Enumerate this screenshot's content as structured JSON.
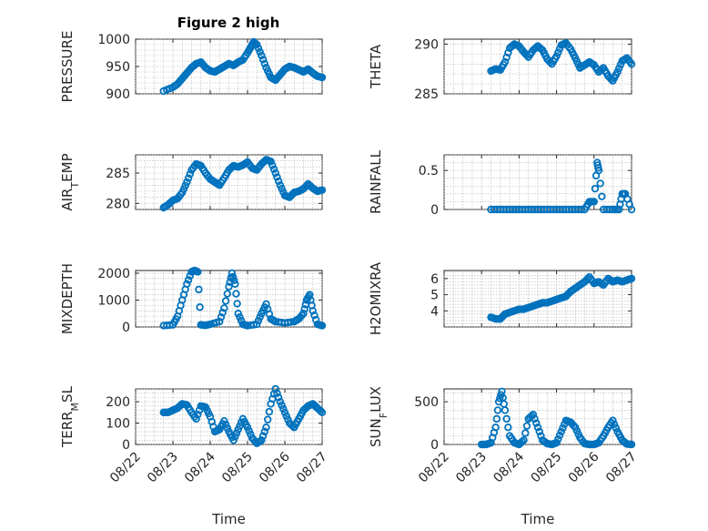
{
  "figure": {
    "title": "Figure 2 high",
    "xlabel": "Time",
    "date_ticks": [
      "08/22",
      "08/23",
      "08/24",
      "08/25",
      "08/26",
      "08/27"
    ]
  },
  "colors": {
    "marker": "#0072BD",
    "axis": "#262626",
    "grid": "#b5b5b5"
  },
  "chart_data": [
    {
      "type": "scatter",
      "ylabel": "PRESSURE",
      "ylim": [
        900,
        1000
      ],
      "yticks": [
        900,
        950,
        1000
      ],
      "grid": "on",
      "x": [
        "08/22 18:00",
        "08/23 00:00",
        "08/23 03:00",
        "08/23 06:00",
        "08/23 09:00",
        "08/23 12:00",
        "08/23 15:00",
        "08/23 18:00",
        "08/23 21:00",
        "08/24 00:00",
        "08/24 03:00",
        "08/24 06:00",
        "08/24 09:00",
        "08/24 12:00",
        "08/24 15:00",
        "08/24 18:00",
        "08/24 21:00",
        "08/25 00:00",
        "08/25 02:00",
        "08/25 04:00",
        "08/25 06:00",
        "08/25 09:00",
        "08/25 12:00",
        "08/25 15:00",
        "08/25 18:00",
        "08/25 21:00",
        "08/26 00:00",
        "08/26 03:00",
        "08/26 06:00",
        "08/26 09:00",
        "08/26 12:00",
        "08/26 15:00",
        "08/26 18:00",
        "08/26 21:00",
        "08/27 00:00"
      ],
      "y": [
        905,
        912,
        918,
        928,
        938,
        948,
        955,
        958,
        948,
        942,
        940,
        945,
        950,
        955,
        952,
        958,
        962,
        975,
        985,
        995,
        990,
        970,
        948,
        930,
        925,
        935,
        945,
        950,
        948,
        944,
        940,
        945,
        938,
        932,
        930
      ]
    },
    {
      "type": "scatter",
      "ylabel": "THETA",
      "ylim": [
        285,
        290.5
      ],
      "yticks": [
        285,
        290
      ],
      "grid": "on",
      "x": [
        "08/23 06:00",
        "08/23 09:00",
        "08/23 12:00",
        "08/23 15:00",
        "08/23 18:00",
        "08/23 21:00",
        "08/24 00:00",
        "08/24 03:00",
        "08/24 06:00",
        "08/24 09:00",
        "08/24 12:00",
        "08/24 15:00",
        "08/24 18:00",
        "08/24 21:00",
        "08/25 00:00",
        "08/25 03:00",
        "08/25 06:00",
        "08/25 09:00",
        "08/25 12:00",
        "08/25 15:00",
        "08/25 18:00",
        "08/25 21:00",
        "08/26 00:00",
        "08/26 03:00",
        "08/26 06:00",
        "08/26 09:00",
        "08/26 12:00",
        "08/26 15:00",
        "08/26 18:00",
        "08/26 21:00",
        "08/27 00:00"
      ],
      "y": [
        287.3,
        287.5,
        287.4,
        288.2,
        289.6,
        290.0,
        289.8,
        289.2,
        288.7,
        289.4,
        289.8,
        289.4,
        288.5,
        288.0,
        288.8,
        289.9,
        290.1,
        289.5,
        288.6,
        287.6,
        287.9,
        288.2,
        287.9,
        287.2,
        287.6,
        286.8,
        286.3,
        287.2,
        288.3,
        288.6,
        288.0
      ]
    },
    {
      "type": "scatter",
      "ylabel": "AIR_TEMP",
      "ylim": [
        279,
        288
      ],
      "yticks": [
        280,
        285
      ],
      "grid": "on",
      "x": [
        "08/22 18:00",
        "08/22 21:00",
        "08/23 00:00",
        "08/23 03:00",
        "08/23 06:00",
        "08/23 09:00",
        "08/23 12:00",
        "08/23 15:00",
        "08/23 18:00",
        "08/23 21:00",
        "08/24 00:00",
        "08/24 03:00",
        "08/24 06:00",
        "08/24 09:00",
        "08/24 12:00",
        "08/24 15:00",
        "08/24 18:00",
        "08/24 21:00",
        "08/25 00:00",
        "08/25 03:00",
        "08/25 06:00",
        "08/25 09:00",
        "08/25 12:00",
        "08/25 15:00",
        "08/25 18:00",
        "08/25 21:00",
        "08/26 00:00",
        "08/26 03:00",
        "08/26 06:00",
        "08/26 09:00",
        "08/26 12:00",
        "08/26 15:00",
        "08/26 18:00",
        "08/26 21:00",
        "08/27 00:00"
      ],
      "y": [
        279.3,
        279.8,
        280.5,
        280.8,
        281.8,
        283.5,
        285.5,
        286.5,
        286.2,
        285.0,
        284.0,
        283.5,
        283.0,
        284.2,
        285.5,
        286.2,
        286.0,
        286.3,
        286.8,
        285.8,
        285.5,
        286.5,
        287.2,
        286.9,
        285.0,
        283.0,
        281.3,
        281.0,
        281.8,
        282.0,
        282.4,
        283.2,
        282.5,
        282.0,
        282.2
      ]
    },
    {
      "type": "scatter",
      "ylabel": "RAINFALL",
      "ylim": [
        0,
        0.7
      ],
      "yticks": [
        0,
        0.5
      ],
      "grid": "on",
      "x": [
        "08/23 06:00",
        "08/23 12:00",
        "08/23 18:00",
        "08/24 00:00",
        "08/24 06:00",
        "08/24 12:00",
        "08/24 18:00",
        "08/25 00:00",
        "08/25 06:00",
        "08/25 12:00",
        "08/25 18:00",
        "08/25 21:00",
        "08/26 00:00",
        "08/26 02:00",
        "08/26 03:00",
        "08/26 06:00",
        "08/26 12:00",
        "08/26 16:00",
        "08/26 18:00",
        "08/26 20:00",
        "08/27 00:00"
      ],
      "y": [
        0,
        0,
        0,
        0,
        0,
        0,
        0,
        0,
        0,
        0,
        0,
        0.1,
        0.1,
        0.6,
        0.5,
        0,
        0,
        0,
        0.2,
        0.2,
        0
      ]
    },
    {
      "type": "scatter",
      "ylabel": "MIXDEPTH",
      "ylim": [
        0,
        2100
      ],
      "yticks": [
        0,
        1000,
        2000
      ],
      "grid": "on",
      "x": [
        "08/22 18:00",
        "08/23 00:00",
        "08/23 03:00",
        "08/23 06:00",
        "08/23 09:00",
        "08/23 12:00",
        "08/23 14:00",
        "08/23 16:00",
        "08/23 18:00",
        "08/23 21:00",
        "08/24 00:00",
        "08/24 06:00",
        "08/24 09:00",
        "08/24 12:00",
        "08/24 14:00",
        "08/24 16:00",
        "08/24 18:00",
        "08/24 21:00",
        "08/25 00:00",
        "08/25 06:00",
        "08/25 09:00",
        "08/25 12:00",
        "08/25 15:00",
        "08/25 18:00",
        "08/26 00:00",
        "08/26 06:00",
        "08/26 09:00",
        "08/26 12:00",
        "08/26 14:00",
        "08/26 16:00",
        "08/26 18:00",
        "08/26 21:00",
        "08/27 00:00"
      ],
      "y": [
        50,
        80,
        400,
        1000,
        1600,
        2050,
        2100,
        2050,
        80,
        60,
        100,
        200,
        700,
        1500,
        2000,
        1600,
        500,
        100,
        50,
        100,
        500,
        850,
        300,
        200,
        150,
        200,
        300,
        500,
        1000,
        1200,
        600,
        100,
        50
      ]
    },
    {
      "type": "scatter",
      "ylabel": "H2OMIXRA",
      "ylim": [
        3,
        6.5
      ],
      "yticks": [
        4,
        5,
        6
      ],
      "grid": "on",
      "x": [
        "08/23 06:00",
        "08/23 09:00",
        "08/23 12:00",
        "08/23 15:00",
        "08/23 18:00",
        "08/23 21:00",
        "08/24 00:00",
        "08/24 03:00",
        "08/24 06:00",
        "08/24 09:00",
        "08/24 12:00",
        "08/24 15:00",
        "08/24 18:00",
        "08/24 21:00",
        "08/25 00:00",
        "08/25 03:00",
        "08/25 06:00",
        "08/25 09:00",
        "08/25 12:00",
        "08/25 15:00",
        "08/25 18:00",
        "08/25 21:00",
        "08/26 00:00",
        "08/26 03:00",
        "08/26 06:00",
        "08/26 09:00",
        "08/26 12:00",
        "08/26 15:00",
        "08/26 18:00",
        "08/26 21:00",
        "08/27 00:00"
      ],
      "y": [
        3.6,
        3.5,
        3.5,
        3.8,
        3.9,
        4.0,
        4.1,
        4.1,
        4.2,
        4.3,
        4.4,
        4.5,
        4.5,
        4.6,
        4.7,
        4.8,
        4.9,
        5.2,
        5.4,
        5.6,
        5.8,
        6.1,
        5.7,
        5.8,
        5.6,
        6.0,
        5.8,
        5.9,
        5.8,
        5.9,
        6.0
      ]
    },
    {
      "type": "scatter",
      "ylabel": "TERR_MSL",
      "ylim": [
        0,
        260
      ],
      "yticks": [
        0,
        100,
        200
      ],
      "grid": "on",
      "x": [
        "08/22 18:00",
        "08/22 21:00",
        "08/23 00:00",
        "08/23 03:00",
        "08/23 06:00",
        "08/23 09:00",
        "08/23 12:00",
        "08/23 15:00",
        "08/23 18:00",
        "08/23 21:00",
        "08/24 00:00",
        "08/24 03:00",
        "08/24 06:00",
        "08/24 09:00",
        "08/24 12:00",
        "08/24 15:00",
        "08/24 18:00",
        "08/24 21:00",
        "08/25 00:00",
        "08/25 03:00",
        "08/25 06:00",
        "08/25 09:00",
        "08/25 12:00",
        "08/25 15:00",
        "08/25 18:00",
        "08/25 21:00",
        "08/26 00:00",
        "08/26 03:00",
        "08/26 06:00",
        "08/26 09:00",
        "08/26 12:00",
        "08/26 15:00",
        "08/26 18:00",
        "08/26 21:00",
        "08/27 00:00"
      ],
      "y": [
        150,
        150,
        160,
        170,
        190,
        185,
        150,
        120,
        180,
        175,
        130,
        60,
        70,
        110,
        60,
        20,
        70,
        120,
        80,
        30,
        5,
        20,
        80,
        190,
        260,
        200,
        150,
        100,
        80,
        120,
        160,
        180,
        190,
        170,
        150
      ]
    },
    {
      "type": "scatter",
      "ylabel": "SUN_FLUX",
      "ylim": [
        0,
        650
      ],
      "yticks": [
        0,
        500
      ],
      "grid": "on",
      "x": [
        "08/23 00:00",
        "08/23 03:00",
        "08/23 06:00",
        "08/23 09:00",
        "08/23 11:00",
        "08/23 13:00",
        "08/23 15:00",
        "08/23 18:00",
        "08/23 21:00",
        "08/24 00:00",
        "08/24 03:00",
        "08/24 06:00",
        "08/24 09:00",
        "08/24 12:00",
        "08/24 15:00",
        "08/24 18:00",
        "08/24 21:00",
        "08/25 00:00",
        "08/25 03:00",
        "08/25 06:00",
        "08/25 09:00",
        "08/25 12:00",
        "08/25 15:00",
        "08/25 18:00",
        "08/25 21:00",
        "08/26 00:00",
        "08/26 03:00",
        "08/26 06:00",
        "08/26 09:00",
        "08/26 12:00",
        "08/26 15:00",
        "08/26 18:00",
        "08/26 21:00",
        "08/27 00:00"
      ],
      "y": [
        0,
        0,
        20,
        200,
        500,
        620,
        400,
        100,
        20,
        0,
        50,
        300,
        350,
        200,
        50,
        10,
        0,
        20,
        150,
        280,
        260,
        200,
        80,
        10,
        0,
        0,
        20,
        100,
        200,
        280,
        150,
        50,
        5,
        0
      ]
    }
  ]
}
